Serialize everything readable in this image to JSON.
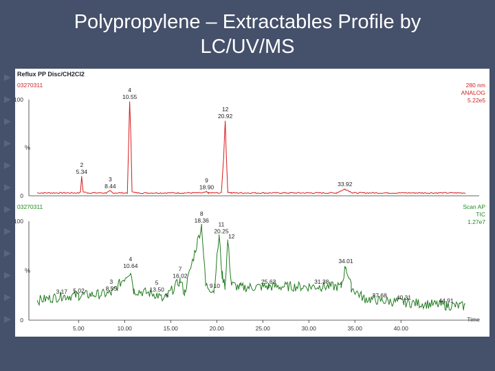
{
  "slide": {
    "title_line1": "Polypropylene – Extractables Profile by",
    "title_line2": "LC/UV/MS"
  },
  "colors": {
    "background": "#45506a",
    "uv_trace": "#d81818",
    "ms_trace": "#1e7a1e",
    "meta_text": "#d02020",
    "ms_meta_text": "#1e8a1e"
  },
  "chart_data": [
    {
      "type": "line",
      "title": "Reflux PP Disc/CH2Cl2",
      "sample_id": "03270311",
      "detector": [
        "280 nm",
        "ANALOG",
        "5.22e5"
      ],
      "ylabel": "%",
      "yticks": [
        "100",
        "0"
      ],
      "xlim": [
        0.5,
        47
      ],
      "ylim": [
        0,
        100
      ],
      "series": [
        {
          "points": [
            [
              0.5,
              3
            ],
            [
              5,
              3
            ],
            [
              5.2,
              4
            ],
            [
              5.34,
              20
            ],
            [
              5.5,
              4
            ],
            [
              6,
              3
            ],
            [
              8,
              3
            ],
            [
              8.44,
              5
            ],
            [
              8.7,
              3
            ],
            [
              10.3,
              3
            ],
            [
              10.45,
              60
            ],
            [
              10.55,
              98
            ],
            [
              10.68,
              60
            ],
            [
              10.8,
              5
            ],
            [
              11.2,
              3
            ],
            [
              18.5,
              3
            ],
            [
              18.9,
              4
            ],
            [
              19.1,
              3
            ],
            [
              20.5,
              3
            ],
            [
              20.75,
              40
            ],
            [
              20.92,
              78
            ],
            [
              21.05,
              40
            ],
            [
              21.2,
              4
            ],
            [
              21.6,
              3
            ],
            [
              33,
              3
            ],
            [
              33.92,
              7
            ],
            [
              34.8,
              3
            ],
            [
              47,
              3
            ]
          ]
        }
      ],
      "peak_labels": [
        {
          "num": "2",
          "rt": "5.34",
          "x": 5.34,
          "y": 20
        },
        {
          "num": "3",
          "rt": "8.44",
          "x": 8.44,
          "y": 5
        },
        {
          "num": "4",
          "rt": "10.55",
          "x": 10.55,
          "y": 98
        },
        {
          "num": "9",
          "rt": "18.90",
          "x": 18.9,
          "y": 4
        },
        {
          "num": "12",
          "rt": "20.92",
          "x": 20.92,
          "y": 78
        },
        {
          "num": "",
          "rt": "33.92",
          "x": 33.92,
          "y": 7
        }
      ]
    },
    {
      "type": "line",
      "sample_id": "03270311",
      "detector": [
        "Scan AP",
        "TIC",
        "1.27e7"
      ],
      "ylabel": "%",
      "yticks": [
        "100",
        "0"
      ],
      "xlabel": "Time",
      "xticks": [
        "5.00",
        "10.00",
        "15.00",
        "20.00",
        "25.00",
        "30.00",
        "35.00",
        "40.00"
      ],
      "xlim": [
        0.5,
        47
      ],
      "ylim": [
        0,
        100
      ],
      "series": [
        {
          "points": [
            [
              0.5,
              20
            ],
            [
              3.17,
              24
            ],
            [
              5.02,
              25
            ],
            [
              8.55,
              27
            ],
            [
              10.64,
              50
            ],
            [
              11,
              30
            ],
            [
              13.5,
              26
            ],
            [
              14.2,
              20
            ],
            [
              16.02,
              40
            ],
            [
              16.5,
              28
            ],
            [
              18.36,
              96
            ],
            [
              18.8,
              35
            ],
            [
              19.7,
              30
            ],
            [
              20.25,
              85
            ],
            [
              20.6,
              45
            ],
            [
              20.9,
              35
            ],
            [
              21.2,
              80
            ],
            [
              21.6,
              36
            ],
            [
              22.5,
              33
            ],
            [
              25.63,
              34
            ],
            [
              31.38,
              34
            ],
            [
              33.5,
              34
            ],
            [
              34.01,
              55
            ],
            [
              34.6,
              33
            ],
            [
              36,
              22
            ],
            [
              37.68,
              20
            ],
            [
              40.31,
              18
            ],
            [
              44.91,
              15
            ],
            [
              47,
              14
            ]
          ]
        }
      ],
      "peak_labels": [
        {
          "num": "",
          "rt": "3.17",
          "x": 3.17,
          "y": 24
        },
        {
          "num": "",
          "rt": "5.02",
          "x": 5.02,
          "y": 25
        },
        {
          "num": "3",
          "rt": "8.55",
          "x": 8.55,
          "y": 27
        },
        {
          "num": "4",
          "rt": "10.64",
          "x": 10.64,
          "y": 50
        },
        {
          "num": "5",
          "rt": "13.50",
          "x": 13.5,
          "y": 26
        },
        {
          "num": "6",
          "rt": "",
          "x": 14.6,
          "y": 20
        },
        {
          "num": "7",
          "rt": "16.02",
          "x": 16.02,
          "y": 40
        },
        {
          "num": "8",
          "rt": "18.36",
          "x": 18.36,
          "y": 96
        },
        {
          "num": "9",
          "rt": "",
          "x": 19.4,
          "y": 30
        },
        {
          "num": "10",
          "rt": "",
          "x": 20.0,
          "y": 30
        },
        {
          "num": "11",
          "rt": "20.25",
          "x": 20.5,
          "y": 85
        },
        {
          "num": "12",
          "rt": "",
          "x": 21.6,
          "y": 80
        },
        {
          "num": "",
          "rt": "25.63",
          "x": 25.63,
          "y": 34
        },
        {
          "num": "",
          "rt": "31.38",
          "x": 31.38,
          "y": 34
        },
        {
          "num": "",
          "rt": "34.01",
          "x": 34.01,
          "y": 55
        },
        {
          "num": "",
          "rt": "37.68",
          "x": 37.68,
          "y": 20
        },
        {
          "num": "",
          "rt": "40.31",
          "x": 40.31,
          "y": 18
        },
        {
          "num": "",
          "rt": "44.91",
          "x": 44.91,
          "y": 15
        }
      ]
    }
  ]
}
